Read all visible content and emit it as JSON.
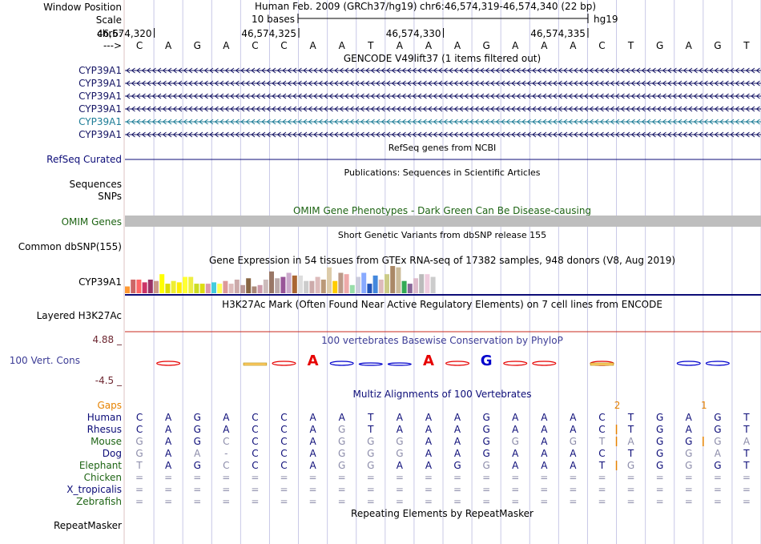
{
  "ruler": {
    "window_position_label": "Window Position",
    "assembly": "Human Feb. 2009 (GRCh37/hg19)",
    "position": "chr6:46,574,319-46,574,340 (22 bp)",
    "scale_label": "Scale",
    "scale_bar_text": "10 bases",
    "scale_db": "hg19",
    "chrom_label": "chr6:",
    "ticks": [
      {
        "label": "46,574,320",
        "base_index": 1
      },
      {
        "label": "46,574,325",
        "base_index": 6
      },
      {
        "label": "46,574,330",
        "base_index": 11
      },
      {
        "label": "46,574,335",
        "base_index": 16
      }
    ],
    "strand_label": "--->",
    "bases": [
      "C",
      "A",
      "G",
      "A",
      "C",
      "C",
      "A",
      "A",
      "T",
      "A",
      "A",
      "A",
      "G",
      "A",
      "A",
      "A",
      "C",
      "T",
      "G",
      "A",
      "G",
      "T"
    ]
  },
  "tracks": {
    "gencode": {
      "title": "GENCODE V49lift37 (1 items filtered out)",
      "items": [
        {
          "name": "CYP39A1",
          "color": "#141464"
        },
        {
          "name": "CYP39A1",
          "color": "#141464"
        },
        {
          "name": "CYP39A1",
          "color": "#141464"
        },
        {
          "name": "CYP39A1",
          "color": "#141464"
        },
        {
          "name": "CYP39A1",
          "color": "#1c7c96"
        },
        {
          "name": "CYP39A1",
          "color": "#141464"
        }
      ]
    },
    "refseq": {
      "title": "RefSeq genes from NCBI",
      "label": "RefSeq Curated",
      "color": "#0c0c78"
    },
    "publications": {
      "title": "Publications: Sequences in Scientific Articles",
      "label1": "Sequences",
      "label2": "SNPs"
    },
    "omim": {
      "title": "OMIM Gene Phenotypes - Dark Green Can Be Disease-causing",
      "label": "OMIM Genes",
      "color": "#1e6414"
    },
    "dbsnp": {
      "title": "Short Genetic Variants from dbSNP release 155",
      "label": "Common dbSNP(155)"
    },
    "gtex": {
      "title": "Gene Expression in 54 tissues from GTEx RNA-seq of 17382 samples, 948 donors (V8, Aug 2019)",
      "label": "CYP39A1",
      "bar_levels": [
        0.25,
        0.5,
        0.5,
        0.4,
        0.5,
        0.45,
        0.7,
        0.35,
        0.45,
        0.4,
        0.6,
        0.6,
        0.35,
        0.35,
        0.35,
        0.4,
        0.35,
        0.45,
        0.35,
        0.5,
        0.3,
        0.55,
        0.25,
        0.3,
        0.5,
        0.8,
        0.55,
        0.6,
        0.75,
        0.65,
        0.65,
        0.45,
        0.45,
        0.6,
        0.5,
        0.95,
        0.45,
        0.75,
        0.7,
        0.3,
        0.6,
        0.75,
        0.35,
        0.65,
        0.5,
        0.7,
        1.0,
        0.95,
        0.45,
        0.35,
        0.55,
        0.7,
        0.7,
        0.6
      ],
      "bar_colors": [
        "#ff9933",
        "#cc6666",
        "#ff6666",
        "#cc3366",
        "#993366",
        "#cc9988",
        "#ffff00",
        "#dddd00",
        "#eeee33",
        "#ffee00",
        "#ffff33",
        "#eeee44",
        "#ccdd22",
        "#dddd11",
        "#dd99aa",
        "#44ccdd",
        "#ffff55",
        "#dd9999",
        "#ddbbbb",
        "#ccaaaa",
        "#bb9999",
        "#886644",
        "#aa8877",
        "#cc99aa",
        "#ccbbbb",
        "#997766",
        "#bbaaaa",
        "#995599",
        "#ccaacc",
        "#aa6633",
        "#dddddd",
        "#cccccc",
        "#ccaaaa",
        "#ddbbbb",
        "#bb9977",
        "#ddccaa",
        "#ffcc00",
        "#bb9988",
        "#eeaaaa",
        "#99ddaa",
        "#ccccdd",
        "#88aaff",
        "#2255bb",
        "#4488dd",
        "#ddbbbb",
        "#cccc88",
        "#aa8866",
        "#ccbb99",
        "#33aa55",
        "#886699",
        "#ddbbcc",
        "#bbbbbb",
        "#eeccdd",
        "#cccccc"
      ]
    },
    "h3k27ac": {
      "title": "H3K27Ac Mark (Often Found Near Active Regulatory Elements) on 7 cell lines from ENCODE",
      "label": "Layered H3K27Ac"
    },
    "phylop": {
      "title": "100 vertebrates Basewise Conservation by PhyloP",
      "label": "100 Vert. Cons",
      "max_label": "4.88 _",
      "min_label": "-4.5 _",
      "big_letters": [
        {
          "base_index": 6,
          "char": "A",
          "color": "#e60000"
        },
        {
          "base_index": 10,
          "char": "A",
          "color": "#e60000"
        },
        {
          "base_index": 12,
          "char": "G",
          "color": "#0000cc"
        }
      ],
      "color_pos": "#0000cc",
      "color_neg": "#e60000"
    },
    "multiz": {
      "title": "Multiz Alignments of 100 Vertebrates",
      "gaps_label": "Gaps",
      "gap_marks": [
        {
          "label": "2",
          "base_index": 17
        },
        {
          "label": "1",
          "base_index": 20
        }
      ],
      "species": [
        {
          "name": "Human",
          "name_color": "#0c0c78",
          "bases": "CAGACCAATAAAGAAACTGAGT",
          "diff": "0000000000000000000000",
          "insert_after": []
        },
        {
          "name": "Rhesus",
          "name_color": "#0c0c78",
          "bases": "CAGACCAGTAAAGAAACTGAGT",
          "diff": "0000000100000000000000",
          "insert_after": [
            16
          ]
        },
        {
          "name": "Mouse",
          "name_color": "#1e6414",
          "bases": "GAGCCCAGGGAAGGAGTAGGGA",
          "diff": "1001000111000101110011",
          "insert_after": [
            16,
            19
          ]
        },
        {
          "name": "Dog",
          "name_color": "#0c0c78",
          "bases": "GAA-CCAGGGAAGAAACTGGAT",
          "diff": "1011000111000000000110",
          "insert_after": []
        },
        {
          "name": "Elephant",
          "name_color": "#1e6414",
          "bases": "TAGCCCAGGAAGGAAATGGGGT",
          "diff": "1001000110001000010100",
          "insert_after": [
            16
          ]
        },
        {
          "name": "Chicken",
          "name_color": "#1e6414",
          "bases": "======================",
          "diff": "1111111111111111111111",
          "insert_after": []
        },
        {
          "name": "X_tropicalis",
          "name_color": "#0c0c78",
          "bases": "======================",
          "diff": "1111111111111111111111",
          "insert_after": []
        },
        {
          "name": "Zebrafish",
          "name_color": "#1e6414",
          "bases": "======================",
          "diff": "1111111111111111111111",
          "insert_after": []
        }
      ]
    },
    "repeatmasker": {
      "title": "Repeating Elements by RepeatMasker",
      "label": "RepeatMasker"
    }
  },
  "colors": {
    "grid": "#c8c8e6",
    "label_blue": "#0c0c78",
    "omim_bar": "#bebebe",
    "h3k27_line": "#c8281e",
    "gap_orange": "#e68200",
    "phylop_label": "#6e2832",
    "mouse_insert": "#e68200"
  }
}
